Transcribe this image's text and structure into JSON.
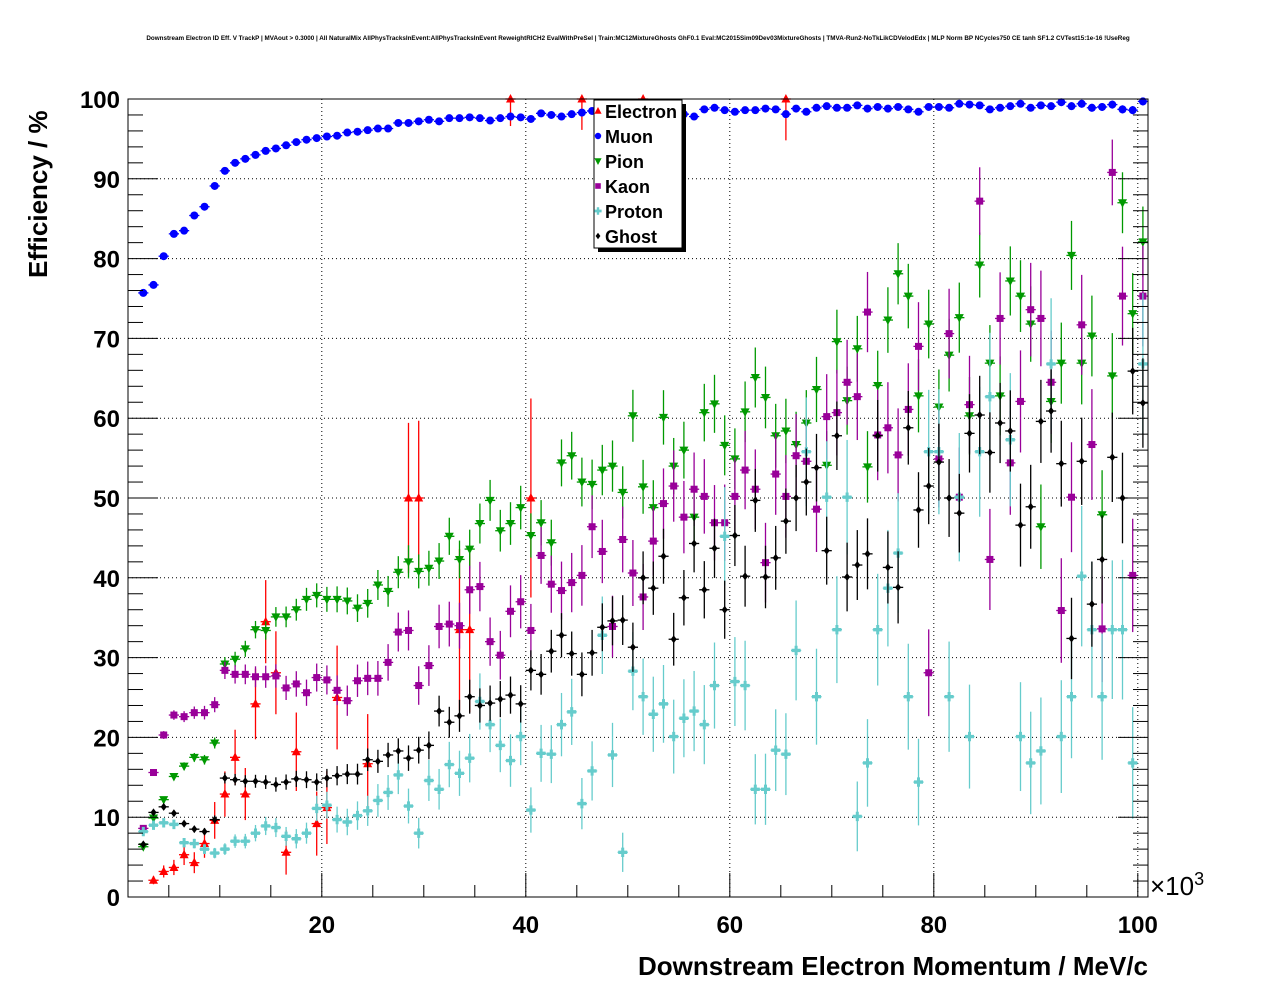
{
  "chart_data": {
    "type": "scatter",
    "title": "Downstream Electron ID Eff. V TrackP | MVAout > 0.3000 | All NaturalMix AllPhysTracksInEvent:AllPhysTracksInEvent ReweightRICH2 EvalWithPreSel | Train:MC12MixtureGhosts GhF0.1 Eval:MC2015Sim09Dev03MixtureGhosts | TMVA-Run2-NoTkLikCDVelodEdx | MLP Norm BP NCycles750 CE tanh SF1.2 CVTest15:1e-16 !UseReg",
    "xlabel": "Downstream Electron Momentum / MeV/c",
    "ylabel": "Efficiency / %",
    "x_multiplier": "×10",
    "x_multiplier_exp": "3",
    "xlim": [
      1,
      101
    ],
    "ylim": [
      0,
      100
    ],
    "grid": true,
    "legend_position": "top-center",
    "x_ticks": [
      "20",
      "40",
      "60",
      "80",
      "100"
    ],
    "x_tick_values": [
      20,
      40,
      60,
      80,
      100
    ],
    "y_ticks": [
      "0",
      "10",
      "20",
      "30",
      "40",
      "50",
      "60",
      "70",
      "80",
      "90",
      "100"
    ],
    "y_tick_values": [
      0,
      10,
      20,
      30,
      40,
      50,
      60,
      70,
      80,
      90,
      100
    ],
    "x_start": 2.5,
    "bin_width": 1,
    "series": [
      {
        "name": "Electron",
        "color": "#ff0000",
        "marker": "triangle-up",
        "points": [
          [
            3.5,
            2.1
          ],
          [
            4.5,
            3.2
          ],
          [
            5.5,
            3.7
          ],
          [
            6.5,
            5.3
          ],
          [
            7.5,
            4.3
          ],
          [
            8.5,
            6.7
          ],
          [
            9.5,
            9.6
          ],
          [
            10.5,
            12.9
          ],
          [
            11.5,
            17.5
          ],
          [
            12.5,
            12.9
          ],
          [
            13.5,
            24.2
          ],
          [
            14.5,
            34.5
          ],
          [
            15.5,
            28.1
          ],
          [
            16.5,
            5.6
          ],
          [
            17.5,
            18.2
          ],
          [
            19.5,
            9.2
          ],
          [
            20.5,
            11.2
          ],
          [
            21.5,
            25.0
          ],
          [
            24.5,
            16.7
          ],
          [
            28.5,
            50
          ],
          [
            29.5,
            50
          ],
          [
            33.5,
            33.5
          ],
          [
            34.5,
            33.5
          ],
          [
            38.5,
            100
          ],
          [
            40.5,
            50
          ],
          [
            45.5,
            100
          ],
          [
            51.5,
            100
          ],
          [
            65.5,
            100
          ]
        ]
      },
      {
        "name": "Muon",
        "color": "#0000ff",
        "marker": "circle",
        "values": [
          75.7,
          76.7,
          80.3,
          83.1,
          83.5,
          85.4,
          86.5,
          89.1,
          91.0,
          92.0,
          92.5,
          93.0,
          93.5,
          93.8,
          94.2,
          94.6,
          94.9,
          95.1,
          95.3,
          95.4,
          95.8,
          95.9,
          96.1,
          96.3,
          96.3,
          97.0,
          97.0,
          97.2,
          97.4,
          97.2,
          97.6,
          97.6,
          97.7,
          97.6,
          97.3,
          97.6,
          97.8,
          97.7,
          97.5,
          98.2,
          98.0,
          97.8,
          98.1,
          98.3,
          98.5,
          98.7,
          98.2,
          98.5,
          98.9,
          98.6,
          98.3,
          98.9,
          98.5,
          98.1,
          97.8,
          98.7,
          98.9,
          98.6,
          98.4,
          98.6,
          98.6,
          98.8,
          98.7,
          98.1,
          98.8,
          98.4,
          98.9,
          99.1,
          98.9,
          98.9,
          99.2,
          98.8,
          99.0,
          98.8,
          99.0,
          98.7,
          98.4,
          99.0,
          99.0,
          98.9,
          99.4,
          99.3,
          99.2,
          98.7,
          98.9,
          99.1,
          99.4,
          98.9,
          99.2,
          99.1,
          99.6,
          99.1,
          99.4,
          98.9,
          99.0,
          99.3,
          98.7,
          98.6,
          99.7
        ]
      },
      {
        "name": "Pion",
        "color": "#009900",
        "marker": "triangle-down",
        "values": [
          6.3,
          9.9,
          12.2,
          15.1,
          16.4,
          17.5,
          17.2,
          19.3,
          29.2,
          29.8,
          31.1,
          33.5,
          33.4,
          35.1,
          35.1,
          36.0,
          37.3,
          37.8,
          37.3,
          37.3,
          37.1,
          36.2,
          36.8,
          39.1,
          38.3,
          40.7,
          42.0,
          40.8,
          41.2,
          42.1,
          45.2,
          42.3,
          43.6,
          46.8,
          49.7,
          45.9,
          46.8,
          48.8,
          45.3,
          46.9,
          44.4,
          54.4,
          55.3,
          52.0,
          51.7,
          53.5,
          54.0,
          50.7,
          60.3,
          51.4,
          48.8,
          60.1,
          54.0,
          56.0,
          47.6,
          60.7,
          61.8,
          56.6,
          54.9,
          60.8,
          65.1,
          62.6,
          57.8,
          58.4,
          56.7,
          59.4,
          63.6,
          54.1,
          69.6,
          62.2,
          68.7,
          53.9,
          64.1,
          72.3,
          78.1,
          75.3,
          62.8,
          71.8,
          61.4,
          67.9,
          72.6,
          60.3,
          79.2,
          66.9,
          62.8,
          77.2,
          75.3,
          71.8,
          46.4,
          62.1,
          66.9,
          80.4,
          66.9,
          70.3,
          47.9,
          65.3,
          87.0,
          73.1,
          82.1
        ]
      },
      {
        "name": "Kaon",
        "color": "#990099",
        "marker": "square",
        "values": [
          8.6,
          15.6,
          20.3,
          22.8,
          22.6,
          23.1,
          23.1,
          24.1,
          28.4,
          27.9,
          27.9,
          27.6,
          27.6,
          27.7,
          26.2,
          26.7,
          25.6,
          27.5,
          27.2,
          25.9,
          24.6,
          27.1,
          27.4,
          27.4,
          29.4,
          33.2,
          33.4,
          26.5,
          29.0,
          33.9,
          34.2,
          34.0,
          38.5,
          38.9,
          32.0,
          30.3,
          35.8,
          37.0,
          33.4,
          42.8,
          39.2,
          38.4,
          39.4,
          40.3,
          46.4,
          43.3,
          33.9,
          44.8,
          40.6,
          37.6,
          44.6,
          49.3,
          51.5,
          47.6,
          51.1,
          50.2,
          46.9,
          46.9,
          50.2,
          53.5,
          51.1,
          41.9,
          53.0,
          50.2,
          55.3,
          54.6,
          48.6,
          60.2,
          60.7,
          64.5,
          62.7,
          73.3,
          57.9,
          58.8,
          55.4,
          61.1,
          69.0,
          28.1,
          54.9,
          70.6,
          50.1,
          61.7,
          87.2,
          42.3,
          72.5,
          54.4,
          62.1,
          73.6,
          72.5,
          64.5,
          35.9,
          50.1,
          71.7,
          56.7,
          33.6,
          90.8,
          75.3,
          40.3,
          75.3
        ]
      },
      {
        "name": "Proton",
        "color": "#66cccc",
        "marker": "cross",
        "values": [
          8.2,
          9.0,
          9.3,
          9.1,
          6.8,
          6.7,
          6.0,
          5.5,
          6.0,
          7.0,
          7.0,
          8.0,
          8.9,
          8.7,
          7.6,
          7.3,
          8.0,
          11.1,
          11.5,
          9.7,
          9.4,
          10.2,
          10.8,
          12.1,
          13.1,
          15.3,
          11.4,
          8.0,
          14.6,
          13.5,
          16.6,
          15.5,
          17.4,
          24.5,
          21.6,
          19.0,
          17.1,
          20.1,
          10.9,
          18.0,
          17.9,
          21.6,
          23.2,
          11.7,
          15.8,
          32.8,
          17.8,
          5.6,
          28.3,
          25.1,
          22.9,
          24.2,
          20.1,
          22.4,
          23.3,
          21.6,
          26.5,
          45.2,
          27.0,
          26.5,
          13.5,
          13.5,
          18.4,
          17.9,
          30.9,
          55.8,
          25.1,
          50.1,
          33.5,
          50.1,
          10.1,
          16.8,
          33.5,
          38.7,
          43.1,
          25.1,
          14.4,
          55.8,
          55.8,
          25.1,
          50.1,
          20.1,
          55.8,
          62.7,
          null,
          57.3,
          20.1,
          16.8,
          18.3,
          66.8,
          20.1,
          25.1,
          40.2,
          33.5,
          25.1,
          33.5,
          33.5,
          16.8,
          66.8
        ]
      },
      {
        "name": "Ghost",
        "color": "#000000",
        "marker": "diamond",
        "values": [
          6.6,
          10.6,
          11.3,
          10.5,
          9.2,
          8.5,
          8.2,
          9.7,
          14.9,
          14.7,
          14.5,
          14.5,
          14.4,
          14.1,
          14.4,
          14.8,
          14.7,
          14.4,
          14.9,
          15.2,
          15.4,
          15.4,
          17.2,
          17.0,
          17.8,
          18.3,
          17.4,
          18.4,
          19.0,
          23.3,
          21.9,
          22.7,
          25.1,
          24.0,
          24.3,
          24.8,
          25.3,
          24.2,
          28.4,
          27.9,
          30.8,
          32.8,
          30.5,
          27.9,
          30.6,
          33.8,
          34.6,
          34.7,
          31.3,
          40.0,
          38.7,
          42.7,
          32.3,
          37.5,
          44.3,
          38.5,
          43.7,
          36.0,
          45.3,
          40.2,
          49.7,
          40.1,
          42.5,
          47.1,
          50.0,
          52.0,
          53.8,
          43.4,
          57.8,
          40.1,
          41.6,
          43.0,
          57.8,
          41.3,
          38.8,
          58.8,
          48.5,
          51.5,
          54.5,
          50.0,
          48.1,
          58.1,
          60.4,
          55.7,
          59.4,
          58.4,
          46.6,
          48.9,
          59.6,
          60.9,
          54.3,
          32.4,
          54.6,
          36.7,
          42.3,
          55.1,
          50.0,
          65.9,
          61.9
        ]
      }
    ]
  }
}
